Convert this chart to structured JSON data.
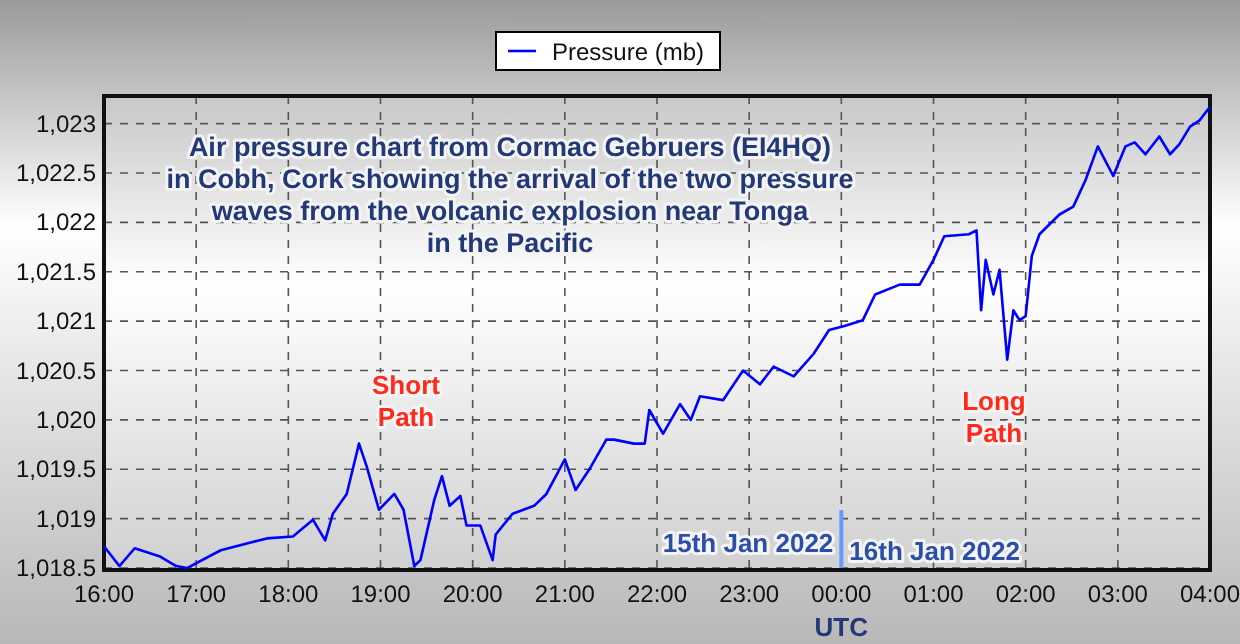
{
  "chart_data": {
    "type": "line",
    "title": "Air pressure chart from Cormac Gebruers (EI4HQ)\nin Cobh, Cork showing the arrival of the two pressure\nwaves from the volcanic explosion near Tonga\nin the Pacific",
    "xlabel": "UTC",
    "x": [
      "2022-01-15T16:00",
      "2022-01-15T16:10",
      "2022-01-15T16:20",
      "2022-01-15T16:36",
      "2022-01-15T16:47",
      "2022-01-15T16:54",
      "2022-01-15T17:16",
      "2022-01-15T17:46",
      "2022-01-15T18:03",
      "2022-01-15T18:16",
      "2022-01-15T18:24",
      "2022-01-15T18:29",
      "2022-01-15T18:38",
      "2022-01-15T18:46",
      "2022-01-15T18:51",
      "2022-01-15T18:59",
      "2022-01-15T19:09",
      "2022-01-15T19:15",
      "2022-01-15T19:22",
      "2022-01-15T19:26",
      "2022-01-15T19:35",
      "2022-01-15T19:40",
      "2022-01-15T19:45",
      "2022-01-15T19:52",
      "2022-01-15T19:56",
      "2022-01-15T20:05",
      "2022-01-15T20:13",
      "2022-01-15T20:15",
      "2022-01-15T20:26",
      "2022-01-15T20:40",
      "2022-01-15T20:48",
      "2022-01-15T21:00",
      "2022-01-15T21:07",
      "2022-01-15T21:16",
      "2022-01-15T21:27",
      "2022-01-15T21:32",
      "2022-01-15T21:45",
      "2022-01-15T21:52",
      "2022-01-15T21:55",
      "2022-01-15T22:04",
      "2022-01-15T22:15",
      "2022-01-15T22:22",
      "2022-01-15T22:28",
      "2022-01-15T22:43",
      "2022-01-15T22:56",
      "2022-01-15T23:07",
      "2022-01-15T23:16",
      "2022-01-15T23:29",
      "2022-01-15T23:42",
      "2022-01-15T23:52",
      "2022-01-16T00:02",
      "2022-01-16T00:14",
      "2022-01-16T00:22",
      "2022-01-16T00:38",
      "2022-01-16T00:51",
      "2022-01-16T01:00",
      "2022-01-16T01:07",
      "2022-01-16T01:23",
      "2022-01-16T01:28",
      "2022-01-16T01:31",
      "2022-01-16T01:34",
      "2022-01-16T01:39",
      "2022-01-16T01:43",
      "2022-01-16T01:48",
      "2022-01-16T01:52",
      "2022-01-16T01:56",
      "2022-01-16T02:00",
      "2022-01-16T02:04",
      "2022-01-16T02:09",
      "2022-01-16T02:22",
      "2022-01-16T02:31",
      "2022-01-16T02:39",
      "2022-01-16T02:47",
      "2022-01-16T02:57",
      "2022-01-16T03:05",
      "2022-01-16T03:11",
      "2022-01-16T03:18",
      "2022-01-16T03:27",
      "2022-01-16T03:34",
      "2022-01-16T03:40",
      "2022-01-16T03:47",
      "2022-01-16T03:53",
      "2022-01-16T04:00"
    ],
    "series": [
      {
        "name": "Pressure (mb)",
        "color": "#0000ff",
        "values": [
          1018.72,
          1018.52,
          1018.7,
          1018.62,
          1018.52,
          1018.5,
          1018.68,
          1018.8,
          1018.82,
          1018.99,
          1018.78,
          1019.05,
          1019.25,
          1019.76,
          1019.53,
          1019.09,
          1019.25,
          1019.09,
          1018.52,
          1018.58,
          1019.19,
          1019.43,
          1019.13,
          1019.23,
          1018.93,
          1018.93,
          1018.58,
          1018.84,
          1019.05,
          1019.13,
          1019.25,
          1019.6,
          1019.29,
          1019.5,
          1019.8,
          1019.8,
          1019.76,
          1019.76,
          1020.1,
          1019.86,
          1020.16,
          1020,
          1020.24,
          1020.2,
          1020.5,
          1020.36,
          1020.54,
          1020.44,
          1020.67,
          1020.91,
          1020.95,
          1021.01,
          1021.27,
          1021.37,
          1021.37,
          1021.62,
          1021.86,
          1021.88,
          1021.92,
          1021.11,
          1021.62,
          1021.27,
          1021.52,
          1020.61,
          1021.11,
          1021.01,
          1021.05,
          1021.66,
          1021.88,
          1022.08,
          1022.16,
          1022.43,
          1022.77,
          1022.47,
          1022.77,
          1022.81,
          1022.69,
          1022.87,
          1022.69,
          1022.79,
          1022.97,
          1023.03,
          1023.17
        ]
      }
    ],
    "xlim": [
      "2022-01-15T16:00",
      "2022-01-16T04:00"
    ],
    "ylim": [
      1018.48,
      1023.28
    ],
    "xticks": [
      {
        "value": "2022-01-15T16:00",
        "label": "16:00"
      },
      {
        "value": "2022-01-15T17:00",
        "label": "17:00"
      },
      {
        "value": "2022-01-15T18:00",
        "label": "18:00"
      },
      {
        "value": "2022-01-15T19:00",
        "label": "19:00"
      },
      {
        "value": "2022-01-15T20:00",
        "label": "20:00"
      },
      {
        "value": "2022-01-15T21:00",
        "label": "21:00"
      },
      {
        "value": "2022-01-15T22:00",
        "label": "22:00"
      },
      {
        "value": "2022-01-15T23:00",
        "label": "23:00"
      },
      {
        "value": "2022-01-16T00:00",
        "label": "00:00"
      },
      {
        "value": "2022-01-16T01:00",
        "label": "01:00"
      },
      {
        "value": "2022-01-16T02:00",
        "label": "02:00"
      },
      {
        "value": "2022-01-16T03:00",
        "label": "03:00"
      },
      {
        "value": "2022-01-16T04:00",
        "label": "04:00"
      }
    ],
    "yticks": [
      {
        "value": 1018.5,
        "label": "1,018.5"
      },
      {
        "value": 1019,
        "label": "1,019"
      },
      {
        "value": 1019.5,
        "label": "1,019.5"
      },
      {
        "value": 1020,
        "label": "1,020"
      },
      {
        "value": 1020.5,
        "label": "1,020.5"
      },
      {
        "value": 1021,
        "label": "1,021"
      },
      {
        "value": 1021.5,
        "label": "1,021.5"
      },
      {
        "value": 1022,
        "label": "1,022"
      },
      {
        "value": 1022.5,
        "label": "1,022.5"
      },
      {
        "value": 1023,
        "label": "1,023"
      }
    ],
    "ref_lines": [
      {
        "axis": "x",
        "value": "2022-01-16T00:00",
        "label": "15th Jan 2022",
        "color": "#6699ff"
      }
    ],
    "annotations": [
      "Short\nPath",
      "Long\nPath",
      {
        "text": "16th Jan 2022",
        "x": "2022-01-16T00:00",
        "y": 1018.68
      }
    ],
    "grid": true,
    "legend": "top right",
    "marker": "none",
    "line_style": "solid"
  }
}
